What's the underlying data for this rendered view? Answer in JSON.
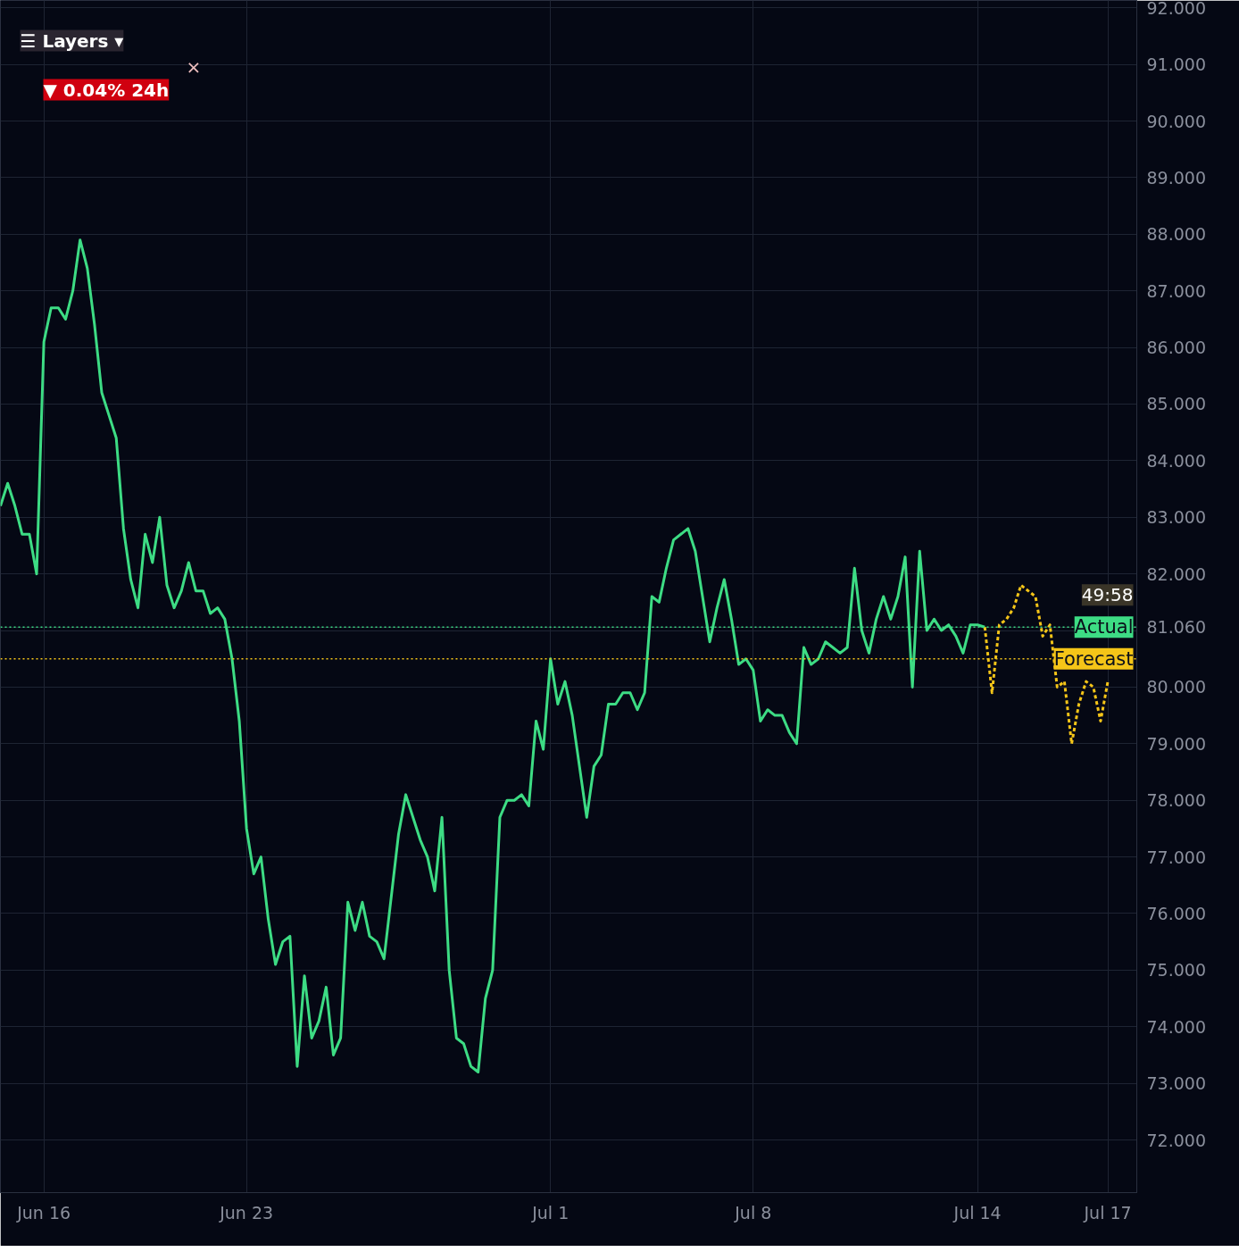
{
  "chart_data": {
    "type": "line",
    "ylim": [
      71.07,
      92.13
    ],
    "categories": [
      null,
      null,
      null,
      null,
      null,
      null,
      "Jun 16",
      null,
      null,
      null,
      null,
      null,
      null,
      null,
      null,
      null,
      null,
      null,
      null,
      null,
      null,
      null,
      null,
      null,
      null,
      null,
      null,
      null,
      null,
      null,
      null,
      null,
      null,
      null,
      "Jun 23",
      null,
      null,
      null,
      null,
      null,
      null,
      null,
      null,
      null,
      null,
      null,
      null,
      null,
      null,
      null,
      null,
      null,
      null,
      null,
      null,
      null,
      null,
      null,
      null,
      null,
      null,
      null,
      null,
      null,
      null,
      null,
      null,
      null,
      null,
      null,
      null,
      null,
      null,
      null,
      null,
      null,
      "Jul 1",
      null,
      null,
      null,
      null,
      null,
      null,
      null,
      null,
      null,
      null,
      null,
      null,
      null,
      null,
      null,
      null,
      null,
      null,
      null,
      null,
      null,
      null,
      null,
      null,
      null,
      null,
      null,
      "Jul 8",
      null,
      null,
      null,
      null,
      null,
      null,
      null,
      null,
      null,
      null,
      null,
      null,
      null,
      null,
      null,
      null,
      null,
      null,
      null,
      null,
      null,
      null,
      null,
      null,
      null,
      null,
      null,
      null,
      null,
      null,
      "Jul 14",
      null,
      null,
      null,
      null,
      null,
      null,
      null,
      null,
      null,
      null,
      null,
      null,
      null,
      null,
      null,
      null,
      null,
      "Jul 17"
    ],
    "yticks": [
      {
        "value": 72,
        "label": "72.000"
      },
      {
        "value": 73,
        "label": "73.000"
      },
      {
        "value": 74,
        "label": "74.000"
      },
      {
        "value": 75,
        "label": "75.000"
      },
      {
        "value": 76,
        "label": "76.000"
      },
      {
        "value": 77,
        "label": "77.000"
      },
      {
        "value": 78,
        "label": "78.000"
      },
      {
        "value": 79,
        "label": "79.000"
      },
      {
        "value": 80,
        "label": "80.000"
      },
      {
        "value": 81,
        "label": null
      },
      {
        "value": 81.06,
        "label": "81.060"
      },
      {
        "value": 82,
        "label": "82.000"
      },
      {
        "value": 83,
        "label": "83.000"
      },
      {
        "value": 84,
        "label": "84.000"
      },
      {
        "value": 85,
        "label": "85.000"
      },
      {
        "value": 86,
        "label": "86.000"
      },
      {
        "value": 87,
        "label": "87.000"
      },
      {
        "value": 88,
        "label": "88.000"
      },
      {
        "value": 89,
        "label": "89.000"
      },
      {
        "value": 90,
        "label": "90.000"
      },
      {
        "value": 91,
        "label": "91.000"
      },
      {
        "value": 92,
        "label": "92.000"
      }
    ],
    "grid": true,
    "marker": "none",
    "series": [
      {
        "color": "#3ddc84",
        "line_style": "solid",
        "values": [
          83.2,
          83.6,
          83.2,
          82.7,
          82.7,
          82.0,
          86.1,
          86.7,
          86.7,
          86.5,
          87.0,
          87.9,
          87.4,
          86.4,
          85.2,
          84.8,
          84.4,
          82.8,
          81.9,
          81.4,
          82.7,
          82.2,
          83.0,
          81.8,
          81.4,
          81.7,
          82.2,
          81.7,
          81.7,
          81.3,
          81.4,
          81.2,
          80.5,
          79.4,
          77.5,
          76.7,
          77.0,
          75.9,
          75.1,
          75.5,
          75.6,
          73.3,
          74.9,
          73.8,
          74.1,
          74.7,
          73.5,
          73.8,
          76.2,
          75.7,
          76.2,
          75.6,
          75.5,
          75.2,
          76.3,
          77.4,
          78.1,
          77.7,
          77.3,
          77.0,
          76.4,
          77.7,
          75.0,
          73.8,
          73.7,
          73.3,
          73.2,
          74.5,
          75.0,
          77.7,
          78.0,
          78.0,
          78.1,
          77.9,
          79.4,
          78.9,
          80.5,
          79.7,
          80.1,
          79.5,
          78.6,
          77.7,
          78.6,
          78.8,
          79.7,
          79.7,
          79.9,
          79.9,
          79.6,
          79.9,
          81.6,
          81.5,
          82.1,
          82.6,
          82.7,
          82.8,
          82.4,
          81.6,
          80.8,
          81.4,
          81.9,
          81.2,
          80.4,
          80.5,
          80.3,
          79.4,
          79.6,
          79.5,
          79.5,
          79.2,
          79.0,
          80.7,
          80.4,
          80.5,
          80.8,
          80.7,
          80.6,
          80.7,
          82.1,
          81.0,
          80.6,
          81.2,
          81.6,
          81.2,
          81.6,
          82.3,
          80.0,
          82.4,
          81.0,
          81.2,
          81.0,
          81.1,
          80.9,
          80.6,
          81.1,
          81.1,
          81.06,
          null,
          null,
          null,
          null,
          null,
          null,
          null,
          null,
          null,
          null,
          null,
          null,
          null,
          null,
          null,
          null,
          null
        ]
      },
      {
        "color": "#f5c518",
        "line_style": "dashed",
        "values": [
          null,
          null,
          null,
          null,
          null,
          null,
          null,
          null,
          null,
          null,
          null,
          null,
          null,
          null,
          null,
          null,
          null,
          null,
          null,
          null,
          null,
          null,
          null,
          null,
          null,
          null,
          null,
          null,
          null,
          null,
          null,
          null,
          null,
          null,
          null,
          null,
          null,
          null,
          null,
          null,
          null,
          null,
          null,
          null,
          null,
          null,
          null,
          null,
          null,
          null,
          null,
          null,
          null,
          null,
          null,
          null,
          null,
          null,
          null,
          null,
          null,
          null,
          null,
          null,
          null,
          null,
          null,
          null,
          null,
          null,
          null,
          null,
          null,
          null,
          null,
          null,
          null,
          null,
          null,
          null,
          null,
          null,
          null,
          null,
          null,
          null,
          null,
          null,
          null,
          null,
          null,
          null,
          null,
          null,
          null,
          null,
          null,
          null,
          null,
          null,
          null,
          null,
          null,
          null,
          null,
          null,
          null,
          null,
          null,
          null,
          null,
          null,
          null,
          null,
          null,
          null,
          null,
          null,
          null,
          null,
          null,
          null,
          null,
          null,
          null,
          null,
          null,
          null,
          null,
          null,
          null,
          null,
          null,
          null,
          null,
          null,
          81.06,
          79.9,
          81.1,
          81.2,
          81.4,
          81.8,
          81.7,
          81.6,
          80.9,
          81.1,
          80.0,
          80.1,
          79.0,
          79.7,
          80.1,
          80.0,
          79.4,
          80.1
        ]
      }
    ],
    "ref_lines": [
      {
        "axis": "y",
        "value": 81.06,
        "label": "Actual",
        "color": "#3ddc84",
        "line_style": "dotted"
      },
      {
        "axis": "y",
        "value": 80.5,
        "label": "Forecast",
        "color": "#f5c518",
        "line_style": "dotted"
      }
    ],
    "annotations": [
      "☰ Layers ▾",
      "▼ 0.04% 24h",
      "×",
      "49:58"
    ]
  }
}
